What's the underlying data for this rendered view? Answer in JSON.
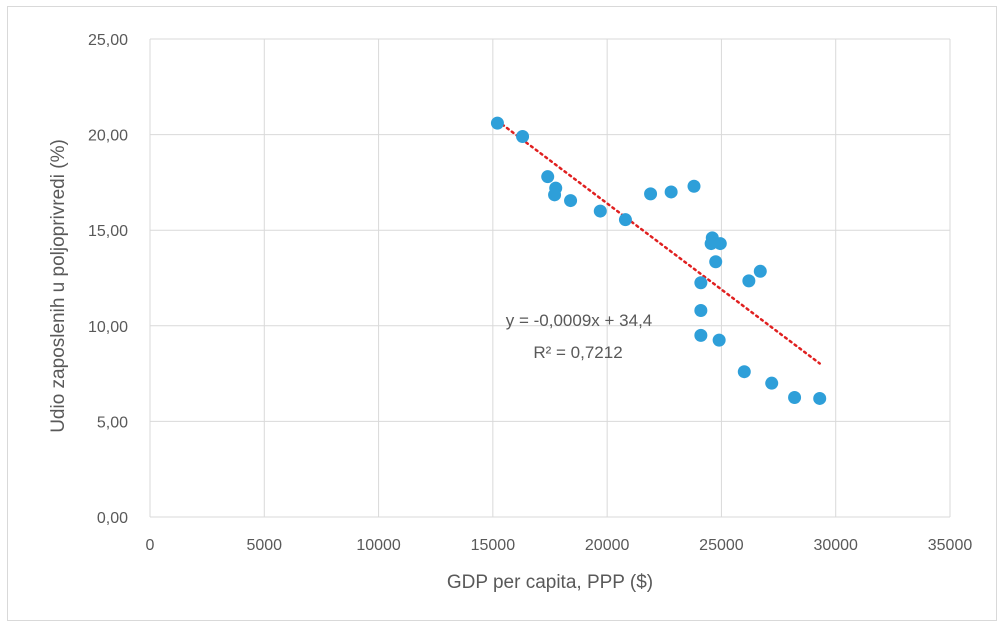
{
  "chart_data": {
    "type": "scatter",
    "title": "",
    "xlabel": "GDP per capita, PPP ($)",
    "ylabel": "Udio zaposlenih u poljoprivredi (%)",
    "xlim": [
      0,
      35000
    ],
    "ylim": [
      0,
      25
    ],
    "x_ticks": [
      0,
      5000,
      10000,
      15000,
      20000,
      25000,
      30000,
      35000
    ],
    "x_tick_labels": [
      "0",
      "5000",
      "10000",
      "15000",
      "20000",
      "25000",
      "30000",
      "35000"
    ],
    "y_ticks": [
      0,
      5,
      10,
      15,
      20,
      25
    ],
    "y_tick_labels": [
      "0,00",
      "5,00",
      "10,00",
      "15,00",
      "20,00",
      "25,00"
    ],
    "grid": true,
    "legend": "none",
    "marker_color": "#2e9fd9",
    "trendline_color": "#e02020",
    "series": [
      {
        "x": [
          15200,
          16300,
          17400,
          17750,
          17700,
          18400,
          19700,
          20800,
          21900,
          22800,
          23800,
          24600,
          24550,
          24950,
          24750,
          24100,
          26200,
          26700,
          24100,
          24100,
          24900,
          26000,
          27200,
          28200,
          29300
        ],
        "y": [
          20.6,
          19.9,
          17.8,
          17.2,
          16.85,
          16.55,
          16.0,
          15.55,
          16.9,
          17.0,
          17.3,
          14.6,
          14.3,
          14.3,
          13.35,
          12.25,
          12.35,
          12.85,
          10.8,
          9.5,
          9.25,
          7.6,
          7.0,
          6.25,
          6.2
        ]
      }
    ],
    "trendline": {
      "type": "linear",
      "x_range": [
        15200,
        29300
      ],
      "slope": -0.0009,
      "intercept": 34.4,
      "equation": "y = -0,0009x + 34,4",
      "r_squared": "R² = 0,7212"
    }
  }
}
